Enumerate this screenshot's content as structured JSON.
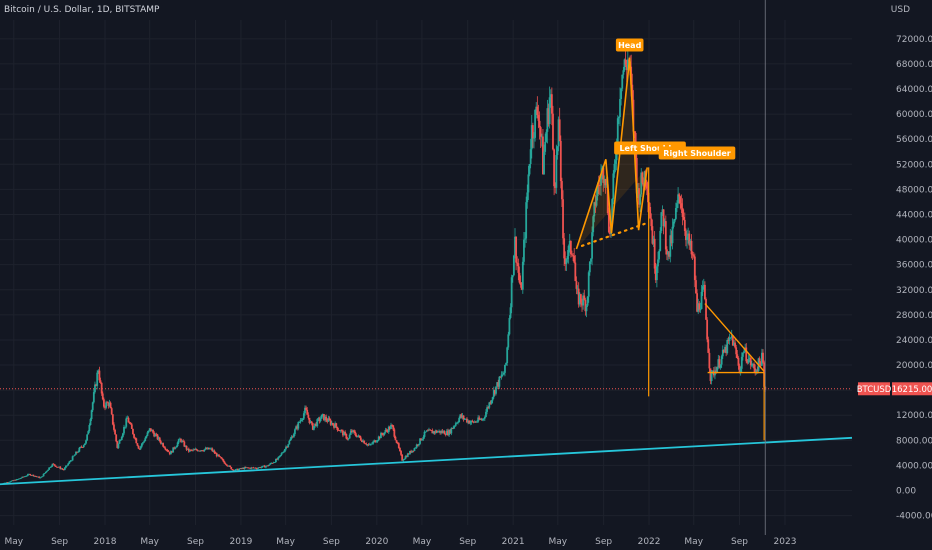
{
  "header": {
    "title": "Bitcoin / U.S. Dollar, 1D, BITSTAMP",
    "currency": "USD"
  },
  "colors": {
    "background": "#131722",
    "up": "#26a69a",
    "down": "#ef5350",
    "pattern": "#ff9800",
    "trendline": "#26c6da",
    "crosshair": "#787b86",
    "grid": "#1e222d"
  },
  "chart_data": {
    "type": "candlestick",
    "y_ticks": [
      -4000,
      0,
      4000,
      8000,
      12000,
      16000,
      20000,
      24000,
      28000,
      32000,
      36000,
      40000,
      44000,
      48000,
      52000,
      56000,
      60000,
      64000,
      68000,
      72000
    ],
    "y_tick_labels": [
      "-4000.00",
      "0.00",
      "4000.00",
      "8000.00",
      "12000.00",
      "16000.00",
      "20000.00",
      "24000.00",
      "28000.00",
      "32000.00",
      "36000.00",
      "40000.00",
      "44000.00",
      "48000.00",
      "52000.00",
      "56000.00",
      "60000.00",
      "64000.00",
      "68000.00",
      "72000.00"
    ],
    "ylim": [
      -5500,
      75000
    ],
    "x_ticks": [
      {
        "label": "May",
        "date": "2017-05-01"
      },
      {
        "label": "Sep",
        "date": "2017-09-01"
      },
      {
        "label": "2018",
        "date": "2018-01-01"
      },
      {
        "label": "May",
        "date": "2018-05-01"
      },
      {
        "label": "Sep",
        "date": "2018-09-01"
      },
      {
        "label": "2019",
        "date": "2019-01-01"
      },
      {
        "label": "May",
        "date": "2019-05-01"
      },
      {
        "label": "Sep",
        "date": "2019-09-01"
      },
      {
        "label": "2020",
        "date": "2020-01-01"
      },
      {
        "label": "May",
        "date": "2020-05-01"
      },
      {
        "label": "Sep",
        "date": "2020-09-01"
      },
      {
        "label": "2021",
        "date": "2021-01-01"
      },
      {
        "label": "May",
        "date": "2021-05-01"
      },
      {
        "label": "Sep",
        "date": "2021-09-01"
      },
      {
        "label": "2022",
        "date": "2022-01-01"
      },
      {
        "label": "May",
        "date": "2022-05-01"
      },
      {
        "label": "Sep",
        "date": "2022-09-01"
      },
      {
        "label": "2023",
        "date": "2023-01-01"
      }
    ],
    "xlim": [
      "2017-03-25",
      "2023-06-30"
    ],
    "price_series": [
      [
        "2017-03-25",
        960
      ],
      [
        "2017-05-15",
        1800
      ],
      [
        "2017-06-15",
        2600
      ],
      [
        "2017-07-15",
        2000
      ],
      [
        "2017-08-15",
        4200
      ],
      [
        "2017-09-15",
        3300
      ],
      [
        "2017-10-15",
        5700
      ],
      [
        "2017-11-15",
        7900
      ],
      [
        "2017-12-17",
        19500
      ],
      [
        "2017-12-30",
        13500
      ],
      [
        "2018-01-15",
        14000
      ],
      [
        "2018-02-06",
        6900
      ],
      [
        "2018-03-05",
        11500
      ],
      [
        "2018-04-06",
        6600
      ],
      [
        "2018-05-05",
        9800
      ],
      [
        "2018-06-28",
        5900
      ],
      [
        "2018-07-25",
        8200
      ],
      [
        "2018-08-15",
        6300
      ],
      [
        "2018-09-15",
        6500
      ],
      [
        "2018-10-15",
        6600
      ],
      [
        "2018-11-20",
        4500
      ],
      [
        "2018-12-15",
        3200
      ],
      [
        "2019-01-15",
        3600
      ],
      [
        "2019-02-15",
        3600
      ],
      [
        "2019-03-15",
        3900
      ],
      [
        "2019-04-15",
        5100
      ],
      [
        "2019-05-15",
        7900
      ],
      [
        "2019-06-26",
        12800
      ],
      [
        "2019-07-15",
        10000
      ],
      [
        "2019-08-10",
        11800
      ],
      [
        "2019-09-15",
        10300
      ],
      [
        "2019-10-20",
        8200
      ],
      [
        "2019-10-27",
        9500
      ],
      [
        "2019-12-15",
        7100
      ],
      [
        "2020-01-15",
        8800
      ],
      [
        "2020-02-13",
        10300
      ],
      [
        "2020-03-12",
        4900
      ],
      [
        "2020-04-15",
        6800
      ],
      [
        "2020-05-15",
        9300
      ],
      [
        "2020-06-15",
        9400
      ],
      [
        "2020-07-15",
        9200
      ],
      [
        "2020-08-15",
        11800
      ],
      [
        "2020-09-15",
        10800
      ],
      [
        "2020-10-15",
        11400
      ],
      [
        "2020-11-15",
        16000
      ],
      [
        "2020-12-15",
        19400
      ],
      [
        "2021-01-08",
        40000
      ],
      [
        "2021-01-25",
        31000
      ],
      [
        "2021-02-21",
        57000
      ],
      [
        "2021-03-13",
        61000
      ],
      [
        "2021-03-25",
        52000
      ],
      [
        "2021-04-14",
        64000
      ],
      [
        "2021-04-25",
        49000
      ],
      [
        "2021-05-08",
        58000
      ],
      [
        "2021-05-19",
        37000
      ],
      [
        "2021-06-15",
        39000
      ],
      [
        "2021-06-22",
        31000
      ],
      [
        "2021-07-20",
        29800
      ],
      [
        "2021-08-14",
        47000
      ],
      [
        "2021-09-07",
        52000
      ],
      [
        "2021-09-21",
        40500
      ],
      [
        "2021-10-20",
        66000
      ],
      [
        "2021-11-10",
        69000
      ],
      [
        "2021-11-28",
        54000
      ],
      [
        "2021-12-04",
        47000
      ],
      [
        "2021-12-27",
        51000
      ],
      [
        "2022-01-22",
        35000
      ],
      [
        "2022-02-10",
        44500
      ],
      [
        "2022-02-24",
        37000
      ],
      [
        "2022-03-28",
        47500
      ],
      [
        "2022-04-15",
        40500
      ],
      [
        "2022-05-05",
        36000
      ],
      [
        "2022-05-12",
        28500
      ],
      [
        "2022-05-31",
        31800
      ],
      [
        "2022-06-18",
        18000
      ],
      [
        "2022-07-15",
        20800
      ],
      [
        "2022-08-14",
        24500
      ],
      [
        "2022-09-06",
        19000
      ],
      [
        "2022-09-13",
        22500
      ],
      [
        "2022-10-15",
        19100
      ],
      [
        "2022-11-05",
        21300
      ],
      [
        "2022-11-09",
        16215
      ]
    ],
    "current_price": {
      "symbol": "BTCUSD",
      "label": "16215.00",
      "value": 16215
    },
    "pattern": {
      "left_shoulder_label": "Left Shoulder",
      "head_label": "Head",
      "right_shoulder_label": "Right Shoulder",
      "points": [
        [
          "2021-06-20",
          38500
        ],
        [
          "2021-09-07",
          52800
        ],
        [
          "2021-09-22",
          41000
        ],
        [
          "2021-11-10",
          69000
        ],
        [
          "2021-12-04",
          41500
        ],
        [
          "2021-12-27",
          51500
        ]
      ],
      "neckline": [
        [
          "2021-07-05",
          39000
        ],
        [
          "2021-12-20",
          42500
        ]
      ],
      "measured_move_bottom": [
        "2021-12-31",
        15000
      ],
      "triangle_upper": [
        [
          "2022-05-31",
          29800
        ],
        [
          "2022-11-06",
          19000
        ]
      ],
      "triangle_lower": [
        [
          "2022-06-18",
          18800
        ],
        [
          "2022-11-06",
          18800
        ]
      ],
      "triangle_target": [
        "2022-11-06",
        8000
      ]
    },
    "trendline": [
      [
        "2017-03-25",
        1000
      ],
      [
        "2023-06-30",
        8400
      ]
    ],
    "crosshair_date": "2022-11-09"
  }
}
